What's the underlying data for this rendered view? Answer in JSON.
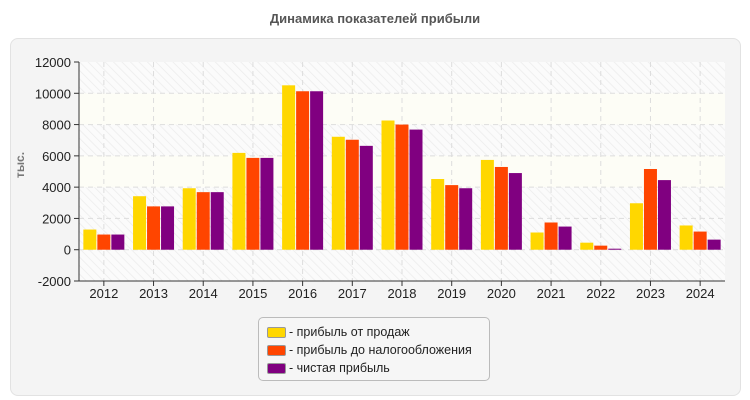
{
  "chart_data": {
    "type": "bar",
    "title": "Динамика показателей прибыли",
    "xlabel": "",
    "ylabel": "тыс.",
    "ylim": [
      -2000,
      12000
    ],
    "yticks": [
      "-2000",
      "0",
      "2000",
      "4000",
      "6000",
      "8000",
      "10000",
      "12000"
    ],
    "grid": true,
    "legend_position": "bottom",
    "categories": [
      "2012",
      "2013",
      "2014",
      "2015",
      "2016",
      "2017",
      "2018",
      "2019",
      "2020",
      "2021",
      "2022",
      "2023",
      "2024"
    ],
    "series": [
      {
        "name": "- прибыль от продаж",
        "color": "#FFD700",
        "values": [
          1290,
          3420,
          3930,
          6190,
          10510,
          7220,
          8260,
          4520,
          5740,
          1100,
          450,
          2970,
          1550
        ]
      },
      {
        "name": "- прибыль до налогообложения",
        "color": "#FF4500",
        "values": [
          970,
          2770,
          3680,
          5870,
          10130,
          7030,
          8000,
          4130,
          5290,
          1740,
          260,
          5160,
          1160
        ]
      },
      {
        "name": "- чистая прибыль",
        "color": "#800080",
        "values": [
          970,
          2770,
          3680,
          5870,
          10130,
          6640,
          7680,
          3930,
          4900,
          1480,
          65,
          4450,
          645
        ]
      }
    ]
  }
}
